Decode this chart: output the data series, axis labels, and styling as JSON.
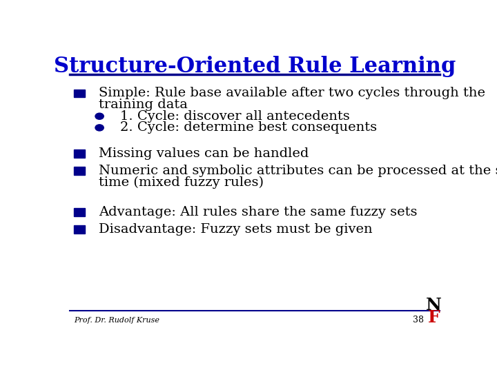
{
  "title": "Structure-Oriented Rule Learning",
  "title_color": "#0000CC",
  "title_fontsize": 22,
  "bg_color": "#FFFFFF",
  "line_color": "#00008B",
  "bullet_color": "#00008B",
  "text_color": "#000000",
  "footer_text": "Prof. Dr. Rudolf Kruse",
  "footer_number": "38",
  "content_fontsize": 14,
  "sub_fontsize": 14
}
